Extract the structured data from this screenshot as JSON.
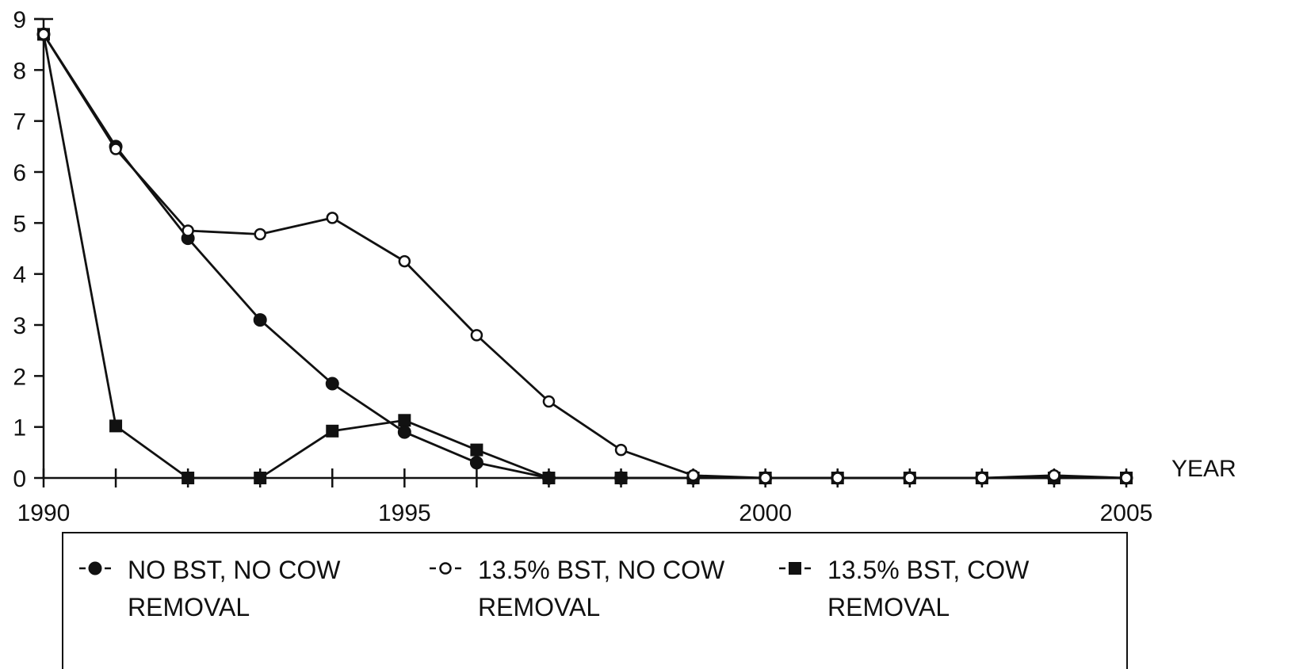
{
  "chart_data": {
    "type": "line",
    "xlabel": "YEAR",
    "ylabel": "",
    "xlim": [
      1990,
      2005
    ],
    "ylim": [
      0,
      9
    ],
    "x_ticks": [
      1990,
      1991,
      1992,
      1993,
      1994,
      1995,
      1996,
      1997,
      1998,
      1999,
      2000,
      2001,
      2002,
      2003,
      2004,
      2005
    ],
    "x_tick_labels": [
      {
        "x": 1990,
        "label": "1990"
      },
      {
        "x": 1995,
        "label": "1995"
      },
      {
        "x": 2000,
        "label": "2000"
      },
      {
        "x": 2005,
        "label": "2005"
      }
    ],
    "y_ticks": [
      0,
      1,
      2,
      3,
      4,
      5,
      6,
      7,
      8,
      9
    ],
    "y_tick_labels": [
      "0",
      "1",
      "2",
      "3",
      "4",
      "5",
      "6",
      "7",
      "8",
      "9"
    ],
    "grid": false,
    "legend_position": "bottom",
    "series": [
      {
        "name": "NO BST, NO COW REMOVAL",
        "legend_lines": [
          "NO BST, NO COW",
          "REMOVAL"
        ],
        "marker": "filled-circle",
        "x": [
          1990,
          1991,
          1992,
          1993,
          1994,
          1995,
          1996,
          1997,
          1998,
          1999,
          2000,
          2001,
          2002,
          2003,
          2004,
          2005
        ],
        "y": [
          8.7,
          6.5,
          4.7,
          3.1,
          1.85,
          0.9,
          0.3,
          0,
          0,
          0,
          0,
          0,
          0,
          0,
          0,
          0
        ]
      },
      {
        "name": "13.5% BST, NO COW REMOVAL",
        "legend_lines": [
          "13.5% BST, NO COW",
          "REMOVAL"
        ],
        "marker": "open-circle",
        "x": [
          1990,
          1991,
          1992,
          1993,
          1994,
          1995,
          1996,
          1997,
          1998,
          1999,
          2000,
          2001,
          2002,
          2003,
          2004,
          2005
        ],
        "y": [
          8.7,
          6.45,
          4.85,
          4.78,
          5.1,
          4.25,
          2.8,
          1.5,
          0.55,
          0.05,
          0,
          0,
          0,
          0,
          0.05,
          0
        ]
      },
      {
        "name": "13.5% BST, COW REMOVAL",
        "legend_lines": [
          "13.5% BST, COW",
          "REMOVAL"
        ],
        "marker": "filled-square",
        "x": [
          1990,
          1991,
          1992,
          1993,
          1994,
          1995,
          1996,
          1997,
          1998,
          1999,
          2000,
          2001,
          2002,
          2003,
          2004,
          2005
        ],
        "y": [
          8.7,
          1.02,
          0,
          0,
          0.92,
          1.13,
          0.55,
          0,
          0,
          0,
          0,
          0,
          0,
          0,
          0,
          0
        ]
      }
    ]
  }
}
